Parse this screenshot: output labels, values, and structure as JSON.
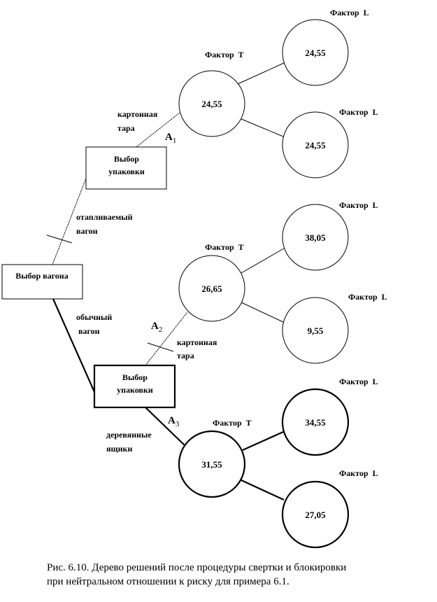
{
  "nodes": {
    "root": "Выбор вагона",
    "pack1": [
      "Выбор",
      "упаковки"
    ],
    "pack2": [
      "Выбор",
      "упаковки"
    ]
  },
  "branches": {
    "heated": [
      "отапливаемый",
      "вагон"
    ],
    "ordinary": [
      "обычный",
      "вагон"
    ],
    "cardboard1": [
      "картонная",
      "тара"
    ],
    "cardboard2": [
      "картонная",
      "тара"
    ],
    "wooden": [
      "деревянные",
      "ящики"
    ]
  },
  "alternatives": {
    "a1": "A",
    "a1_sub": "1",
    "a2": "A",
    "a2_sub": "2",
    "a3": "A",
    "a3_sub": "3"
  },
  "chance_nodes": [
    {
      "label": "Фактор  T",
      "value": "24,55"
    },
    {
      "label": "Фактор  T",
      "value": "26,65"
    },
    {
      "label": "Фактор  T",
      "value": "31,55"
    }
  ],
  "leaf_nodes": [
    {
      "label": "Фактор  L",
      "value": "24,55"
    },
    {
      "label": "Фактор  L",
      "value": "24,55"
    },
    {
      "label": "Фактор  L",
      "value": "38,05"
    },
    {
      "label": "Фактор  L",
      "value": "9,55"
    },
    {
      "label": "Фактор  L",
      "value": "34,55"
    },
    {
      "label": "Фактор  L",
      "value": "27,05"
    }
  ],
  "caption": [
    "Рис. 6.10. Дерево решений после процедуры свертки и блокировки",
    "при нейтральном отношении к риску для примера 6.1."
  ]
}
